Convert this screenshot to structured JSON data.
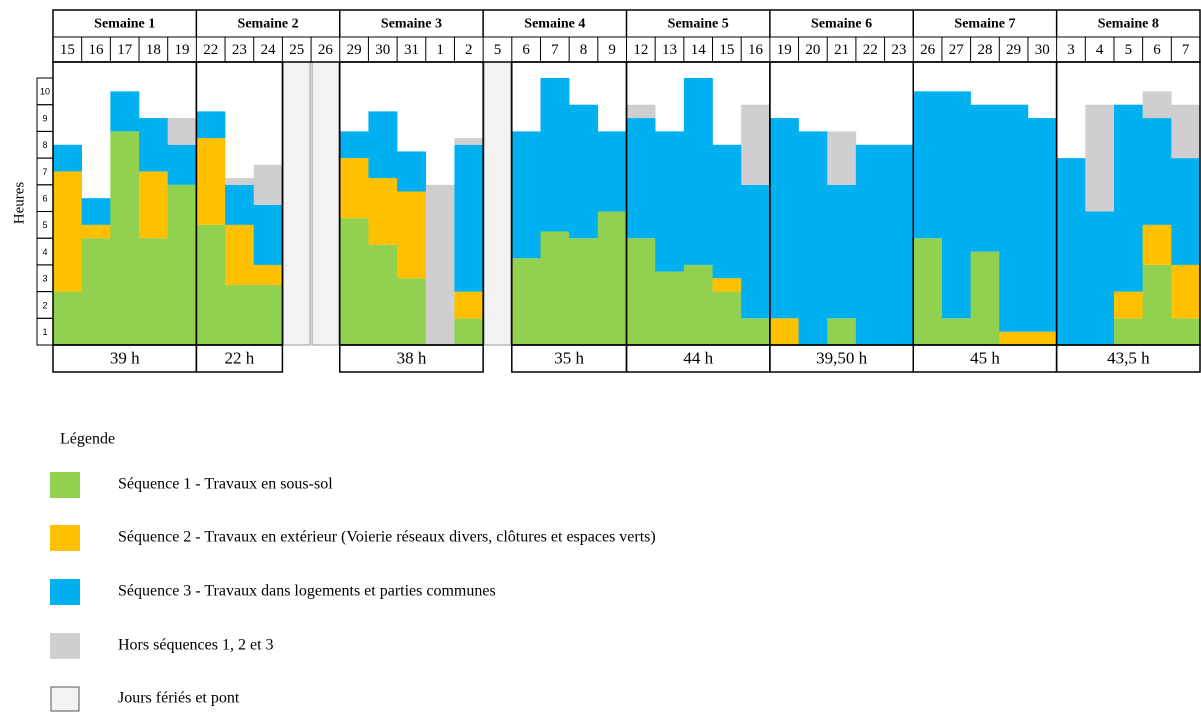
{
  "chart_data": {
    "type": "stacked_bar",
    "y_label": "Heures",
    "ylim": [
      0,
      10.6
    ],
    "yticks": [
      1,
      2,
      3,
      4,
      5,
      6,
      7,
      8,
      9,
      10
    ],
    "categories": [
      "15",
      "16",
      "17",
      "18",
      "19",
      "22",
      "23",
      "24",
      "25",
      "26",
      "29",
      "30",
      "31",
      "1",
      "2",
      "5",
      "6",
      "7",
      "8",
      "9",
      "12",
      "13",
      "14",
      "15",
      "16",
      "19",
      "20",
      "21",
      "22",
      "23",
      "26",
      "27",
      "28",
      "29",
      "30",
      "3",
      "4",
      "5",
      "6",
      "7"
    ],
    "weeks": [
      {
        "label": "Semaine 1",
        "span": 5,
        "total": "39 h"
      },
      {
        "label": "Semaine 2",
        "span": 5,
        "total": "22 h"
      },
      {
        "label": "Semaine 3",
        "span": 5,
        "total": "38 h"
      },
      {
        "label": "Semaine 4",
        "span": 5,
        "total": "35 h"
      },
      {
        "label": "Semaine 5",
        "span": 5,
        "total": "44 h"
      },
      {
        "label": "Semaine 6",
        "span": 5,
        "total": "39,50 h"
      },
      {
        "label": "Semaine 7",
        "span": 5,
        "total": "45 h"
      },
      {
        "label": "Semaine 8",
        "span": 5,
        "total": "43,5 h"
      }
    ],
    "holidays": [
      8,
      9,
      15
    ],
    "holiday_label": "Jours fériés et pont",
    "holiday_color": "#f2f2f2",
    "legend_title": "Légende",
    "series": [
      {
        "name": "Séquence 1 - Travaux en sous-sol",
        "color": "#92d050",
        "values": [
          2,
          4,
          8,
          4,
          6,
          4.5,
          2.25,
          2.25,
          null,
          null,
          4.75,
          3.75,
          2.5,
          null,
          1,
          null,
          3.25,
          4.25,
          4,
          5,
          4,
          2.75,
          3,
          2,
          1,
          null,
          null,
          1,
          null,
          null,
          4,
          1,
          3.5,
          null,
          null,
          null,
          null,
          1,
          3,
          1
        ]
      },
      {
        "name": "Séquence 2 - Travaux en extérieur (Voierie réseaux divers,  clôtures et espaces verts)",
        "color": "#ffc000",
        "values": [
          4.5,
          0.5,
          null,
          2.5,
          null,
          3.25,
          2.25,
          0.75,
          null,
          null,
          2.25,
          2.5,
          3.25,
          null,
          1,
          null,
          null,
          null,
          null,
          null,
          null,
          null,
          null,
          0.5,
          null,
          1,
          null,
          null,
          null,
          null,
          null,
          null,
          null,
          0.5,
          0.5,
          null,
          null,
          1,
          1.5,
          2
        ]
      },
      {
        "name": "Séquence 3 - Travaux dans logements et parties communes",
        "color": "#00b0f0",
        "values": [
          1,
          1,
          1.5,
          2,
          1.5,
          1,
          1.5,
          2.25,
          null,
          null,
          1,
          2.5,
          1.5,
          null,
          5.5,
          null,
          4.75,
          5.75,
          5,
          3,
          4.5,
          5.25,
          7,
          5,
          5,
          7.5,
          8,
          5,
          7.5,
          7.5,
          5.5,
          8.5,
          5.5,
          8.5,
          8,
          7,
          5,
          7,
          4,
          4
        ]
      },
      {
        "name": "Hors séquences 1, 2 et 3",
        "color": "#d0cece",
        "values": [
          null,
          null,
          null,
          null,
          1,
          null,
          0.25,
          1.5,
          null,
          null,
          null,
          null,
          null,
          6,
          0.25,
          null,
          null,
          null,
          null,
          null,
          0.5,
          null,
          null,
          null,
          3,
          null,
          null,
          2,
          null,
          null,
          null,
          null,
          null,
          null,
          null,
          null,
          4,
          null,
          1,
          2
        ]
      }
    ]
  }
}
